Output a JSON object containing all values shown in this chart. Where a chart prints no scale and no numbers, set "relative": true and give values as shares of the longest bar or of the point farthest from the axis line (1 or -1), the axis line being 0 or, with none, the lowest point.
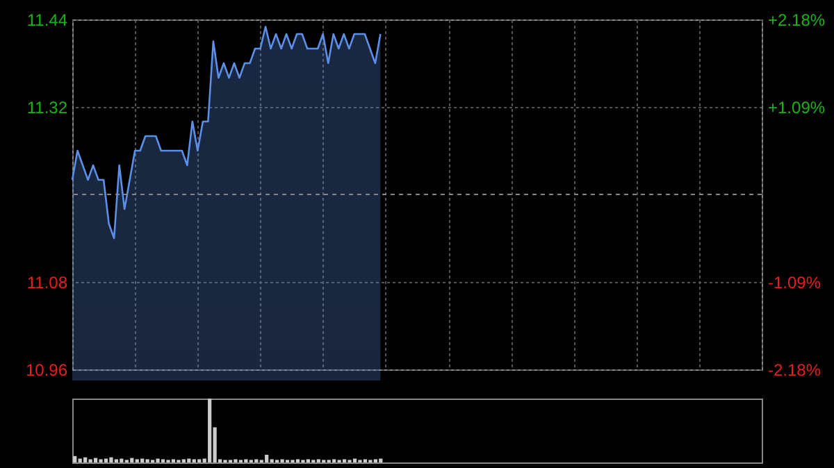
{
  "chart_data": [
    {
      "type": "area",
      "color": "#5b8fe8",
      "categories": [
        null,
        null,
        null,
        null,
        null,
        null,
        null,
        null,
        null,
        null,
        null,
        null,
        null,
        null,
        null,
        null,
        null,
        null,
        null,
        null,
        null,
        null,
        null,
        null,
        null,
        null,
        null,
        null,
        null,
        null,
        null,
        null,
        null,
        null,
        null,
        null,
        null,
        null,
        null,
        null,
        null,
        null,
        null,
        null,
        null,
        null,
        null,
        null,
        null,
        null,
        null,
        null,
        null,
        null,
        null,
        null,
        null,
        null,
        null,
        null,
        null,
        null,
        null,
        null,
        null,
        null,
        null,
        null,
        null,
        null,
        null,
        null,
        null,
        null,
        null,
        null,
        null,
        null,
        null,
        null,
        null,
        null,
        null,
        null,
        null,
        null,
        null,
        null,
        null,
        null,
        null,
        null,
        null,
        null,
        null,
        null,
        null,
        null,
        null,
        null,
        null,
        null,
        null,
        null,
        null,
        null,
        null,
        null,
        null,
        null,
        null,
        null,
        null,
        null,
        null,
        null,
        null,
        null,
        null,
        null,
        null,
        null,
        null,
        null,
        null,
        null,
        null,
        null,
        null,
        null,
        null,
        null,
        null
      ],
      "values": [
        11.22,
        11.26,
        11.24,
        11.22,
        11.24,
        11.22,
        11.22,
        11.16,
        11.14,
        11.24,
        11.18,
        11.22,
        11.26,
        11.26,
        11.28,
        11.28,
        11.28,
        11.26,
        11.26,
        11.26,
        11.26,
        11.26,
        11.24,
        11.3,
        11.26,
        11.3,
        11.3,
        11.41,
        11.36,
        11.38,
        11.36,
        11.38,
        11.36,
        11.38,
        11.38,
        11.4,
        11.4,
        11.43,
        11.4,
        11.42,
        11.4,
        11.42,
        11.4,
        11.42,
        11.42,
        11.4,
        11.4,
        11.4,
        11.42,
        11.38,
        11.42,
        11.4,
        11.42,
        11.4,
        11.42,
        11.42,
        11.42,
        11.4,
        11.38,
        11.42,
        null,
        null,
        null,
        null,
        null,
        null,
        null,
        null,
        null,
        null,
        null,
        null,
        null,
        null,
        null,
        null,
        null,
        null,
        null,
        null,
        null,
        null,
        null,
        null,
        null,
        null,
        null,
        null,
        null,
        null,
        null,
        null,
        null,
        null,
        null,
        null,
        null,
        null,
        null,
        null,
        null,
        null,
        null,
        null,
        null,
        null,
        null,
        null,
        null,
        null,
        null,
        null,
        null,
        null,
        null,
        null,
        null,
        null,
        null,
        null,
        null,
        null,
        null,
        null,
        null,
        null,
        null,
        null,
        null,
        null,
        null,
        null,
        null
      ],
      "ylim": [
        10.96,
        11.44
      ],
      "yticks": [
        10.96,
        11.08,
        11.32,
        11.44
      ],
      "y2lim": [
        -2.18,
        2.18
      ],
      "y2ticks": [
        {
          "value": -2.18,
          "label": "-2.18%"
        },
        {
          "value": -1.09,
          "label": "-1.09%"
        },
        {
          "value": 1.09,
          "label": "+1.09%"
        },
        {
          "value": 2.18,
          "label": "+2.18%"
        }
      ],
      "ref_lines": [
        {
          "axis": "y2",
          "value": 0,
          "color": "#888888",
          "line_style": "dashed"
        }
      ],
      "grid": true,
      "tick_labels": "y"
    },
    {
      "type": "bar",
      "relative": true,
      "color": "#cccccc",
      "tick_labels": false,
      "categories": [
        null,
        null,
        null,
        null,
        null,
        null,
        null,
        null,
        null,
        null,
        null,
        null,
        null,
        null,
        null,
        null,
        null,
        null,
        null,
        null,
        null,
        null,
        null,
        null,
        null,
        null,
        null,
        null,
        null,
        null,
        null,
        null,
        null,
        null,
        null,
        null,
        null,
        null,
        null,
        null,
        null,
        null,
        null,
        null,
        null,
        null,
        null,
        null,
        null,
        null,
        null,
        null,
        null,
        null,
        null,
        null,
        null,
        null,
        null,
        null,
        null,
        null,
        null,
        null,
        null,
        null,
        null,
        null,
        null,
        null,
        null,
        null,
        null,
        null,
        null,
        null,
        null,
        null,
        null,
        null,
        null,
        null,
        null,
        null,
        null,
        null,
        null,
        null,
        null,
        null,
        null,
        null,
        null,
        null,
        null,
        null,
        null,
        null,
        null,
        null,
        null,
        null,
        null,
        null,
        null,
        null,
        null,
        null,
        null,
        null,
        null,
        null,
        null,
        null,
        null,
        null,
        null,
        null,
        null,
        null,
        null,
        null,
        null,
        null,
        null,
        null,
        null,
        null,
        null,
        null,
        null,
        null,
        null
      ],
      "values": [
        0.1,
        0.06,
        0.08,
        0.05,
        0.07,
        0.05,
        0.06,
        0.08,
        0.05,
        0.06,
        0.04,
        0.07,
        0.05,
        0.06,
        0.05,
        0.04,
        0.06,
        0.05,
        0.04,
        0.05,
        0.04,
        0.05,
        0.06,
        0.05,
        0.05,
        0.06,
        1,
        0.55,
        0.05,
        0.04,
        0.04,
        0.05,
        0.04,
        0.05,
        0.04,
        0.05,
        0.04,
        0.12,
        0.05,
        0.04,
        0.05,
        0.04,
        0.04,
        0.05,
        0.04,
        0.05,
        0.04,
        0.05,
        0.04,
        0.04,
        0.05,
        0.04,
        0.05,
        0.04,
        0.06,
        0.04,
        0.05,
        0.04,
        0.05,
        0.06,
        null,
        null,
        null,
        null,
        null,
        null,
        null,
        null,
        null,
        null,
        null,
        null,
        null,
        null,
        null,
        null,
        null,
        null,
        null,
        null,
        null,
        null,
        null,
        null,
        null,
        null,
        null,
        null,
        null,
        null,
        null,
        null,
        null,
        null,
        null,
        null,
        null,
        null,
        null,
        null,
        null,
        null,
        null,
        null,
        null,
        null,
        null,
        null,
        null,
        null,
        null,
        null,
        null,
        null,
        null,
        null,
        null,
        null,
        null,
        null,
        null,
        null,
        null,
        null,
        null,
        null,
        null,
        null,
        null,
        null,
        null,
        null,
        null
      ]
    }
  ]
}
